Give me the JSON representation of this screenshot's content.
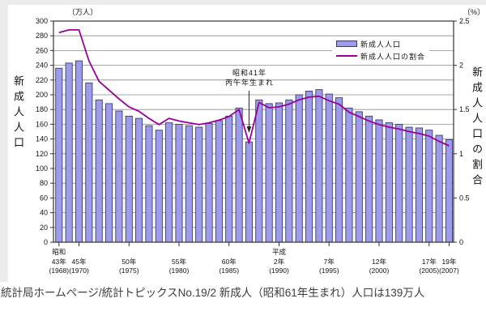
{
  "page": {
    "caption": "統計局ホームページ/統計トピックスNo.19/2 新成人（昭和61年生まれ）人口は139万人"
  },
  "chart_data": {
    "type": "bar",
    "combo": "bar+line",
    "years": [
      1968,
      1969,
      1970,
      1971,
      1972,
      1973,
      1974,
      1975,
      1976,
      1977,
      1978,
      1979,
      1980,
      1981,
      1982,
      1983,
      1984,
      1985,
      1986,
      1987,
      1988,
      1989,
      1990,
      1991,
      1992,
      1993,
      1994,
      1995,
      1996,
      1997,
      1998,
      1999,
      2000,
      2001,
      2002,
      2003,
      2004,
      2005,
      2006,
      2007
    ],
    "series": [
      {
        "name": "新成人人口",
        "type": "bar",
        "axis": "left",
        "unit": "万人",
        "values": [
          236,
          243,
          246,
          216,
          193,
          188,
          178,
          171,
          168,
          158,
          152,
          162,
          160,
          158,
          156,
          161,
          165,
          171,
          182,
          136,
          193,
          188,
          189,
          193,
          200,
          205,
          207,
          201,
          196,
          182,
          177,
          171,
          166,
          162,
          160,
          156,
          155,
          152,
          145,
          139
        ]
      },
      {
        "name": "新成人人口の割合",
        "type": "line",
        "axis": "right",
        "unit": "%",
        "values": [
          2.37,
          2.4,
          2.4,
          2.05,
          1.82,
          1.72,
          1.62,
          1.53,
          1.48,
          1.4,
          1.33,
          1.4,
          1.37,
          1.35,
          1.33,
          1.35,
          1.38,
          1.42,
          1.5,
          1.12,
          1.58,
          1.52,
          1.53,
          1.56,
          1.61,
          1.64,
          1.65,
          1.6,
          1.56,
          1.47,
          1.42,
          1.37,
          1.33,
          1.3,
          1.28,
          1.25,
          1.23,
          1.2,
          1.14,
          1.09
        ]
      }
    ],
    "y_axis_left": {
      "title": "新成人人口",
      "unit": "〔万人〕",
      "min": 0,
      "max": 300,
      "step": 20
    },
    "y_axis_right": {
      "title": "新成人人口の割合",
      "unit": "〔%〕",
      "min": 0,
      "max": 2.5,
      "ticks": [
        {
          "v": 0,
          "label": "0"
        },
        {
          "v": 0.5,
          "label": "0.5"
        },
        {
          "v": 1,
          "label": "1"
        },
        {
          "v": 1.5,
          "label": "1.5"
        },
        {
          "v": 2,
          "label": "2"
        },
        {
          "v": 2.5,
          "label": "2.5"
        }
      ]
    },
    "x_ticks": [
      {
        "year": 1968,
        "era": "昭和",
        "label": "43年",
        "western": "(1968)"
      },
      {
        "year": 1970,
        "era": "",
        "label": "45年",
        "western": "(1970)"
      },
      {
        "year": 1975,
        "era": "",
        "label": "50年",
        "western": "(1975)"
      },
      {
        "year": 1980,
        "era": "",
        "label": "55年",
        "western": "(1980)"
      },
      {
        "year": 1985,
        "era": "",
        "label": "60年",
        "western": "(1985)"
      },
      {
        "year": 1990,
        "era": "平成",
        "label": "2年",
        "western": "(1990)"
      },
      {
        "year": 1995,
        "era": "",
        "label": "7年",
        "western": "(1995)"
      },
      {
        "year": 2000,
        "era": "",
        "label": "12年",
        "western": "(2000)"
      },
      {
        "year": 2005,
        "era": "",
        "label": "17年",
        "western": "(2005)"
      },
      {
        "year": 2007,
        "era": "",
        "label": "19年",
        "western": "(2007)"
      }
    ],
    "legend": [
      {
        "label": "新成人人口",
        "swatch": "bar"
      },
      {
        "label": "新成人人口の割合",
        "swatch": "line"
      }
    ],
    "annotation": {
      "line1": "昭和41年",
      "line2": "丙午年生まれ",
      "target_year": 1987
    },
    "colors": {
      "bar": "#9c9cea",
      "bar_border": "#3b3b6b",
      "line": "#990099",
      "grid": "#8c8c8c",
      "frame": "#333333"
    },
    "layout": {
      "grid": "horizontal-only",
      "legend_position": "top-right-inside",
      "xlim_years": [
        1968,
        2007
      ]
    }
  }
}
